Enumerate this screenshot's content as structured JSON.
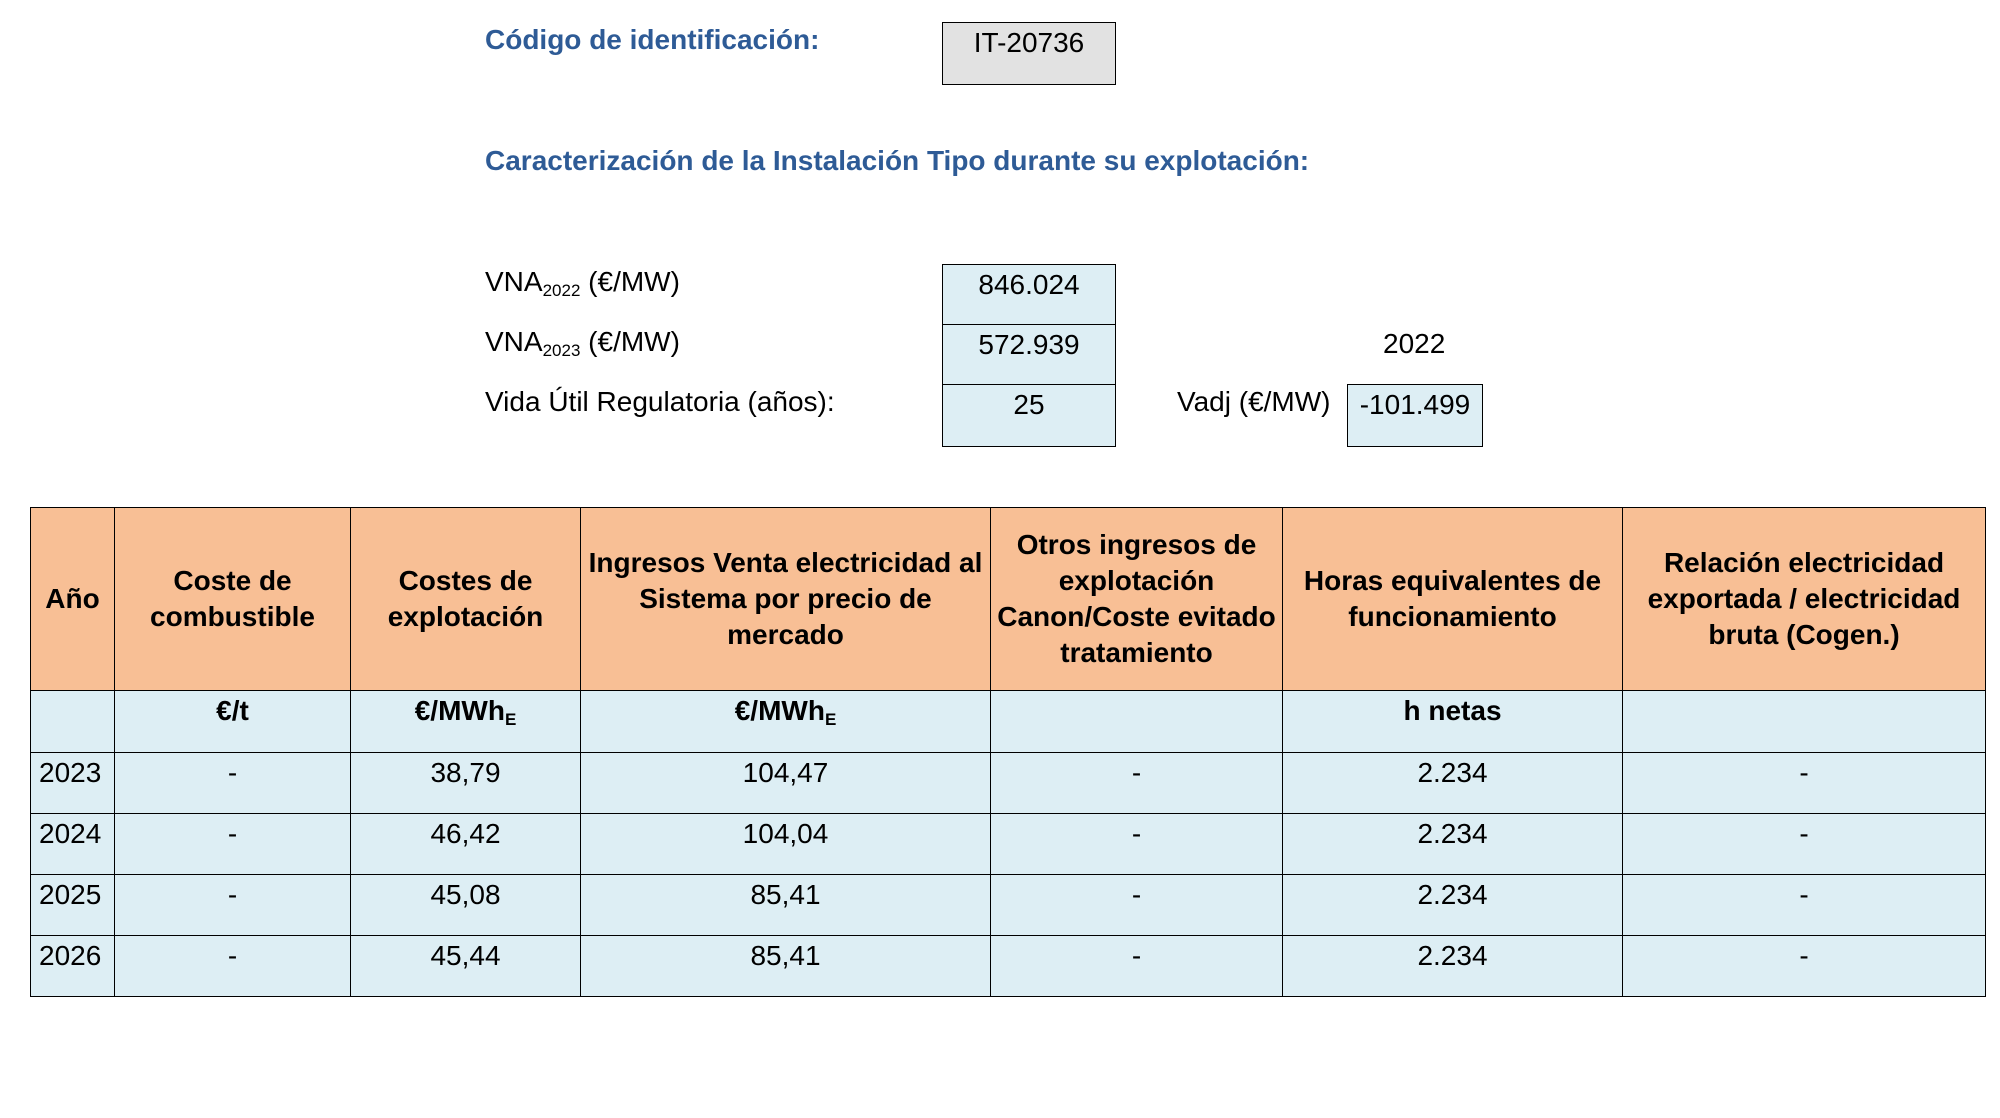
{
  "identification": {
    "label": "Código de identificación:",
    "code": "IT-20736"
  },
  "section_title": "Caracterización de la Instalación Tipo durante su explotación:",
  "params": {
    "vna2022": {
      "label_prefix": "VNA",
      "label_sub": "2022",
      "label_suffix": " (€/MW)",
      "value": "846.024"
    },
    "vna2023": {
      "label_prefix": "VNA",
      "label_sub": "2023",
      "label_suffix": " (€/MW)",
      "value": "572.939"
    },
    "vida_util": {
      "label": "Vida Útil Regulatoria (años):",
      "value": "25"
    },
    "year_note": "2022",
    "vadj": {
      "label": "Vadj (€/MW)",
      "value": "-101.499"
    }
  },
  "table": {
    "headers": [
      "Año",
      "Coste de combustible",
      "Costes de explotación",
      "Ingresos Venta electricidad al Sistema por precio de mercado",
      "Otros ingresos de explotación Canon/Coste evitado tratamiento",
      "Horas equivalentes de funcionamiento",
      "Relación electricidad exportada / electricidad bruta (Cogen.)"
    ],
    "units": {
      "fuel": "€/t",
      "opex_base": "€/MWh",
      "opex_sub": "E",
      "sales_base": "€/MWh",
      "sales_sub": "E",
      "hours": "h netas"
    },
    "rows": [
      {
        "year": "2023",
        "fuel": "-",
        "opex": "38,79",
        "sales": "104,47",
        "other": "-",
        "hours": "2.234",
        "ratio": "-"
      },
      {
        "year": "2024",
        "fuel": "-",
        "opex": "46,42",
        "sales": "104,04",
        "other": "-",
        "hours": "2.234",
        "ratio": "-"
      },
      {
        "year": "2025",
        "fuel": "-",
        "opex": "45,08",
        "sales": "85,41",
        "other": "-",
        "hours": "2.234",
        "ratio": "-"
      },
      {
        "year": "2026",
        "fuel": "-",
        "opex": "45,44",
        "sales": "85,41",
        "other": "-",
        "hours": "2.234",
        "ratio": "-"
      }
    ]
  }
}
